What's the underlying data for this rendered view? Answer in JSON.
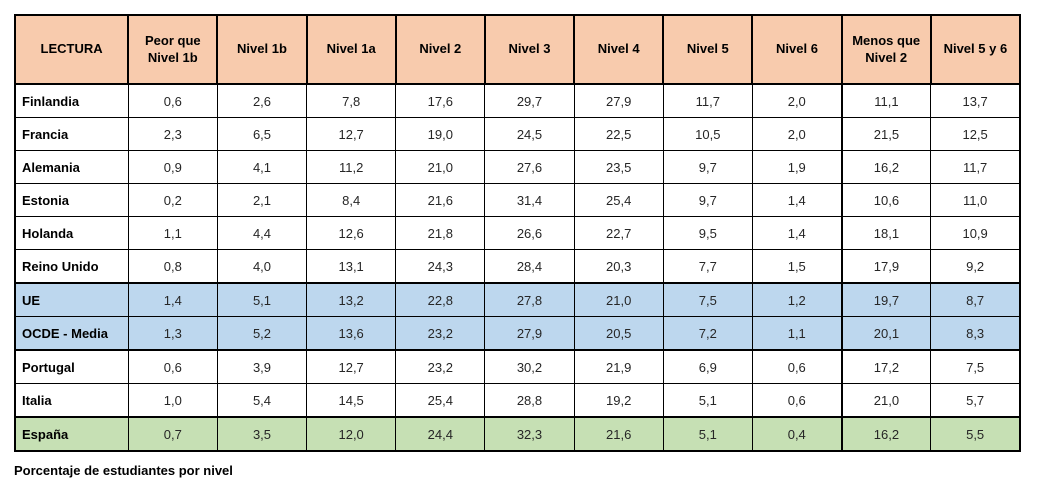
{
  "colors": {
    "header_bg": "#F8CBAD",
    "highlight_blue": "#BDD7EE",
    "highlight_green": "#C6E0B4",
    "border": "#000000"
  },
  "caption": "Porcentaje de estudiantes por nivel",
  "chart_data": {
    "type": "table",
    "title": "LECTURA",
    "caption": "Porcentaje de estudiantes por nivel",
    "columns": [
      "LECTURA",
      "Peor que Nivel 1b",
      "Nivel 1b",
      "Nivel 1a",
      "Nivel 2",
      "Nivel 3",
      "Nivel 4",
      "Nivel 5",
      "Nivel 6",
      "Menos que Nivel 2",
      "Nivel 5 y 6"
    ],
    "rows": [
      {
        "name": "Finlandia",
        "highlight": "none",
        "values": [
          "0,6",
          "2,6",
          "7,8",
          "17,6",
          "29,7",
          "27,9",
          "11,7",
          "2,0",
          "11,1",
          "13,7"
        ]
      },
      {
        "name": "Francia",
        "highlight": "none",
        "values": [
          "2,3",
          "6,5",
          "12,7",
          "19,0",
          "24,5",
          "22,5",
          "10,5",
          "2,0",
          "21,5",
          "12,5"
        ]
      },
      {
        "name": "Alemania",
        "highlight": "none",
        "values": [
          "0,9",
          "4,1",
          "11,2",
          "21,0",
          "27,6",
          "23,5",
          "9,7",
          "1,9",
          "16,2",
          "11,7"
        ]
      },
      {
        "name": "Estonia",
        "highlight": "none",
        "values": [
          "0,2",
          "2,1",
          "8,4",
          "21,6",
          "31,4",
          "25,4",
          "9,7",
          "1,4",
          "10,6",
          "11,0"
        ]
      },
      {
        "name": "Holanda",
        "highlight": "none",
        "values": [
          "1,1",
          "4,4",
          "12,6",
          "21,8",
          "26,6",
          "22,7",
          "9,5",
          "1,4",
          "18,1",
          "10,9"
        ]
      },
      {
        "name": "Reino Unido",
        "highlight": "none",
        "values": [
          "0,8",
          "4,0",
          "13,1",
          "24,3",
          "28,4",
          "20,3",
          "7,7",
          "1,5",
          "17,9",
          "9,2"
        ]
      },
      {
        "name": "UE",
        "highlight": "blue",
        "values": [
          "1,4",
          "5,1",
          "13,2",
          "22,8",
          "27,8",
          "21,0",
          "7,5",
          "1,2",
          "19,7",
          "8,7"
        ]
      },
      {
        "name": "OCDE - Media",
        "highlight": "blue",
        "values": [
          "1,3",
          "5,2",
          "13,6",
          "23,2",
          "27,9",
          "20,5",
          "7,2",
          "1,1",
          "20,1",
          "8,3"
        ]
      },
      {
        "name": "Portugal",
        "highlight": "none",
        "values": [
          "0,6",
          "3,9",
          "12,7",
          "23,2",
          "30,2",
          "21,9",
          "6,9",
          "0,6",
          "17,2",
          "7,5"
        ]
      },
      {
        "name": "Italia",
        "highlight": "none",
        "values": [
          "1,0",
          "5,4",
          "14,5",
          "25,4",
          "28,8",
          "19,2",
          "5,1",
          "0,6",
          "21,0",
          "5,7"
        ]
      },
      {
        "name": "España",
        "highlight": "green",
        "values": [
          "0,7",
          "3,5",
          "12,0",
          "24,4",
          "32,3",
          "21,6",
          "5,1",
          "0,4",
          "16,2",
          "5,5"
        ]
      }
    ]
  }
}
